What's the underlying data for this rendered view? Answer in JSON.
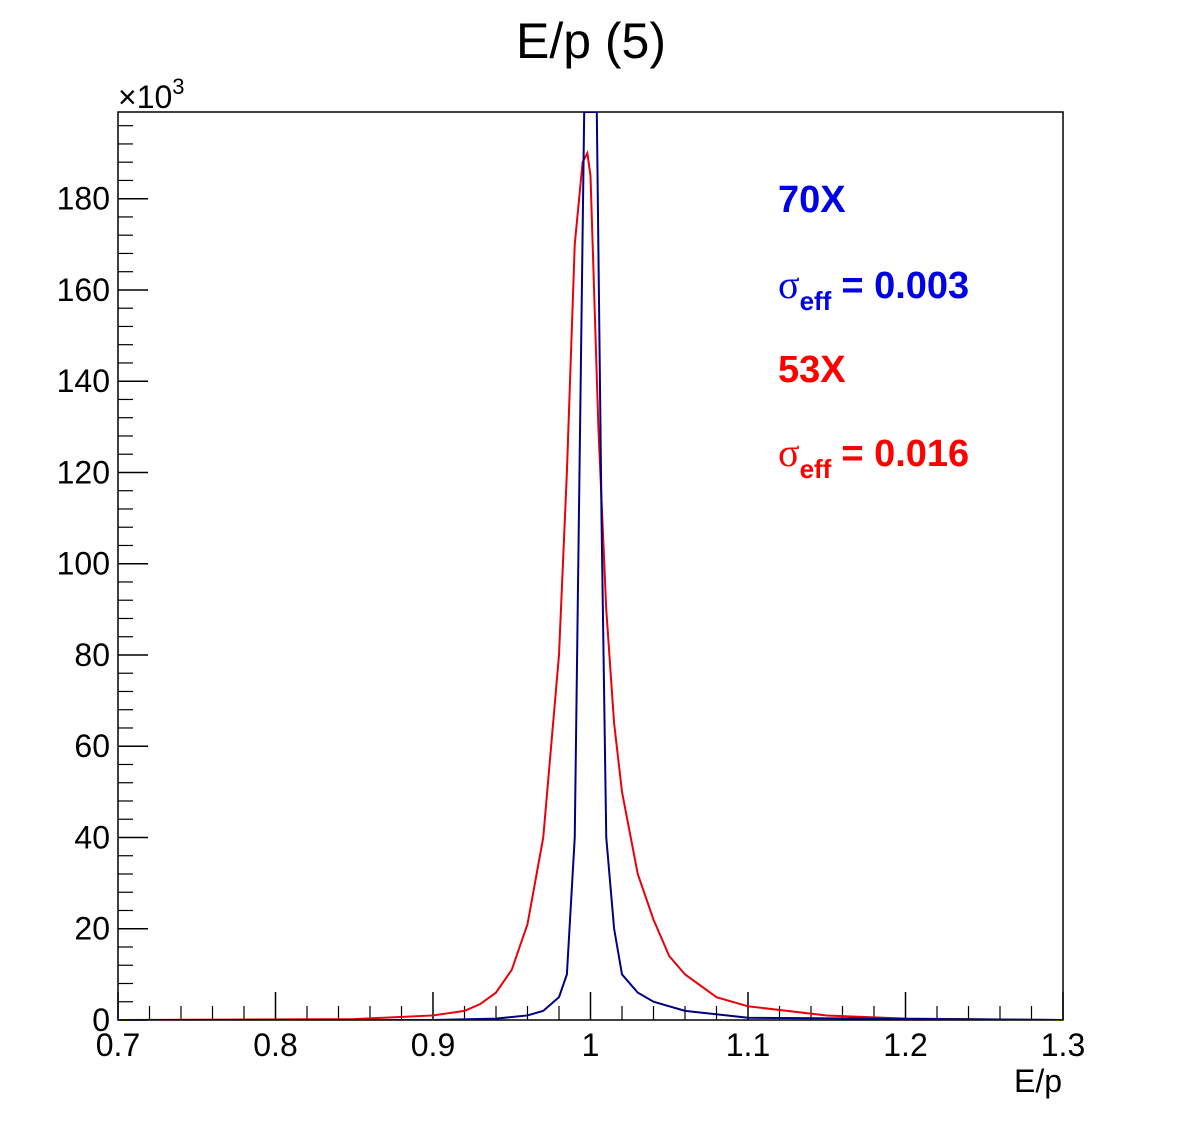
{
  "chart_data": {
    "type": "line",
    "title": "E/p (5)",
    "xlabel": "E/p",
    "ylabel": "",
    "xlim": [
      0.7,
      1.3
    ],
    "ylim": [
      0,
      199
    ],
    "y_multiplier_label": "×10",
    "y_multiplier_exponent": "3",
    "x_ticks": [
      "0.7",
      "0.8",
      "0.9",
      "1",
      "1.1",
      "1.2",
      "1.3"
    ],
    "y_ticks": [
      "0",
      "20",
      "40",
      "60",
      "80",
      "100",
      "120",
      "140",
      "160",
      "180"
    ],
    "grid": false,
    "legend_position": "top-right",
    "series": [
      {
        "name": "70X",
        "color": "#0000e6",
        "line_color": "#000080",
        "sigma_label": "σ",
        "sigma_subscript": "eff",
        "sigma_value_text": "= 0.003",
        "x": [
          0.7,
          0.9,
          0.94,
          0.96,
          0.97,
          0.98,
          0.985,
          0.99,
          0.993,
          0.996,
          0.998,
          1.0,
          1.002,
          1.004,
          1.007,
          1.01,
          1.015,
          1.02,
          1.03,
          1.04,
          1.06,
          1.1,
          1.3
        ],
        "y": [
          0,
          0,
          0.3,
          1.0,
          2.0,
          5.0,
          10.0,
          40.0,
          120.0,
          199.0,
          199.0,
          199.0,
          199.0,
          199.0,
          110.0,
          40.0,
          20.0,
          10.0,
          6.0,
          4.0,
          2.0,
          0.5,
          0
        ]
      },
      {
        "name": "53X",
        "color": "#ff0000",
        "line_color": "#e8000b",
        "sigma_label": "σ",
        "sigma_subscript": "eff",
        "sigma_value_text": "= 0.016",
        "x": [
          0.7,
          0.85,
          0.9,
          0.92,
          0.93,
          0.94,
          0.95,
          0.96,
          0.97,
          0.98,
          0.985,
          0.99,
          0.995,
          0.998,
          1.0,
          1.005,
          1.01,
          1.015,
          1.02,
          1.03,
          1.04,
          1.05,
          1.06,
          1.08,
          1.1,
          1.15,
          1.2,
          1.3
        ],
        "y": [
          0,
          0.2,
          1.0,
          2.0,
          3.5,
          6.0,
          11.0,
          21.0,
          40.0,
          80.0,
          120.0,
          170.0,
          188.0,
          190.0,
          185.0,
          130.0,
          90.0,
          65.0,
          50.0,
          32.0,
          22.0,
          14.0,
          10.0,
          5.0,
          3.0,
          1.0,
          0.3,
          0
        ]
      }
    ]
  }
}
